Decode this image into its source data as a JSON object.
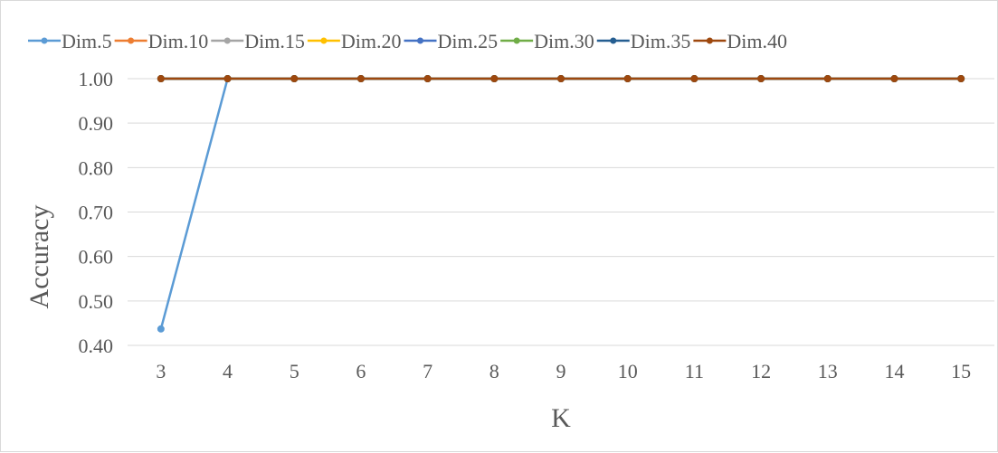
{
  "chart_data": {
    "type": "line",
    "title": "",
    "xlabel": "K",
    "ylabel": "Accuracy",
    "categories": [
      "3",
      "4",
      "5",
      "6",
      "7",
      "8",
      "9",
      "10",
      "11",
      "12",
      "13",
      "14",
      "15"
    ],
    "y_ticks": [
      "0.40",
      "0.50",
      "0.60",
      "0.70",
      "0.80",
      "0.90",
      "1.00"
    ],
    "ylim": [
      0.4,
      1.0
    ],
    "grid": "horizontal",
    "legend_position": "top",
    "series": [
      {
        "name": "Dim.5",
        "color": "#5b9bd5",
        "values": [
          0.437,
          1,
          1,
          1,
          1,
          1,
          1,
          1,
          1,
          1,
          1,
          1,
          1
        ]
      },
      {
        "name": "Dim.10",
        "color": "#ed7d31",
        "values": [
          1,
          1,
          1,
          1,
          1,
          1,
          1,
          1,
          1,
          1,
          1,
          1,
          1
        ]
      },
      {
        "name": "Dim.15",
        "color": "#a5a5a5",
        "values": [
          1,
          1,
          1,
          1,
          1,
          1,
          1,
          1,
          1,
          1,
          1,
          1,
          1
        ]
      },
      {
        "name": "Dim.20",
        "color": "#ffc000",
        "values": [
          1,
          1,
          1,
          1,
          1,
          1,
          1,
          1,
          1,
          1,
          1,
          1,
          1
        ]
      },
      {
        "name": "Dim.25",
        "color": "#4472c4",
        "values": [
          1,
          1,
          1,
          1,
          1,
          1,
          1,
          1,
          1,
          1,
          1,
          1,
          1
        ]
      },
      {
        "name": "Dim.30",
        "color": "#70ad47",
        "values": [
          1,
          1,
          1,
          1,
          1,
          1,
          1,
          1,
          1,
          1,
          1,
          1,
          1
        ]
      },
      {
        "name": "Dim.35",
        "color": "#255e91",
        "values": [
          1,
          1,
          1,
          1,
          1,
          1,
          1,
          1,
          1,
          1,
          1,
          1,
          1
        ]
      },
      {
        "name": "Dim.40",
        "color": "#9e480e",
        "values": [
          1,
          1,
          1,
          1,
          1,
          1,
          1,
          1,
          1,
          1,
          1,
          1,
          1
        ]
      }
    ]
  }
}
